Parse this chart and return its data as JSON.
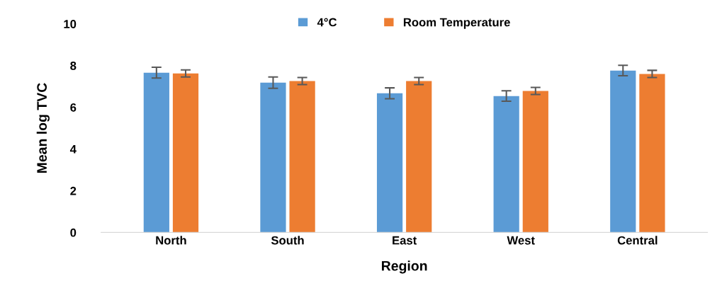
{
  "chart_data": {
    "type": "bar",
    "xlabel": "Region",
    "ylabel": "Mean log TVC",
    "categories": [
      "North",
      "South",
      "East",
      "West",
      "Central"
    ],
    "series": [
      {
        "name": "4°C",
        "color": "#5b9bd5",
        "values": [
          7.66,
          7.18,
          6.67,
          6.54,
          7.76
        ],
        "errors": [
          0.26,
          0.27,
          0.26,
          0.25,
          0.25
        ]
      },
      {
        "name": "Room Temperature",
        "color": "#ed7d31",
        "values": [
          7.62,
          7.26,
          7.26,
          6.78,
          7.6
        ],
        "errors": [
          0.17,
          0.17,
          0.17,
          0.17,
          0.17
        ]
      }
    ],
    "ylim": [
      0,
      10
    ],
    "yticks": [
      0,
      2,
      4,
      6,
      8,
      10
    ],
    "grid": false,
    "legend": "top"
  }
}
